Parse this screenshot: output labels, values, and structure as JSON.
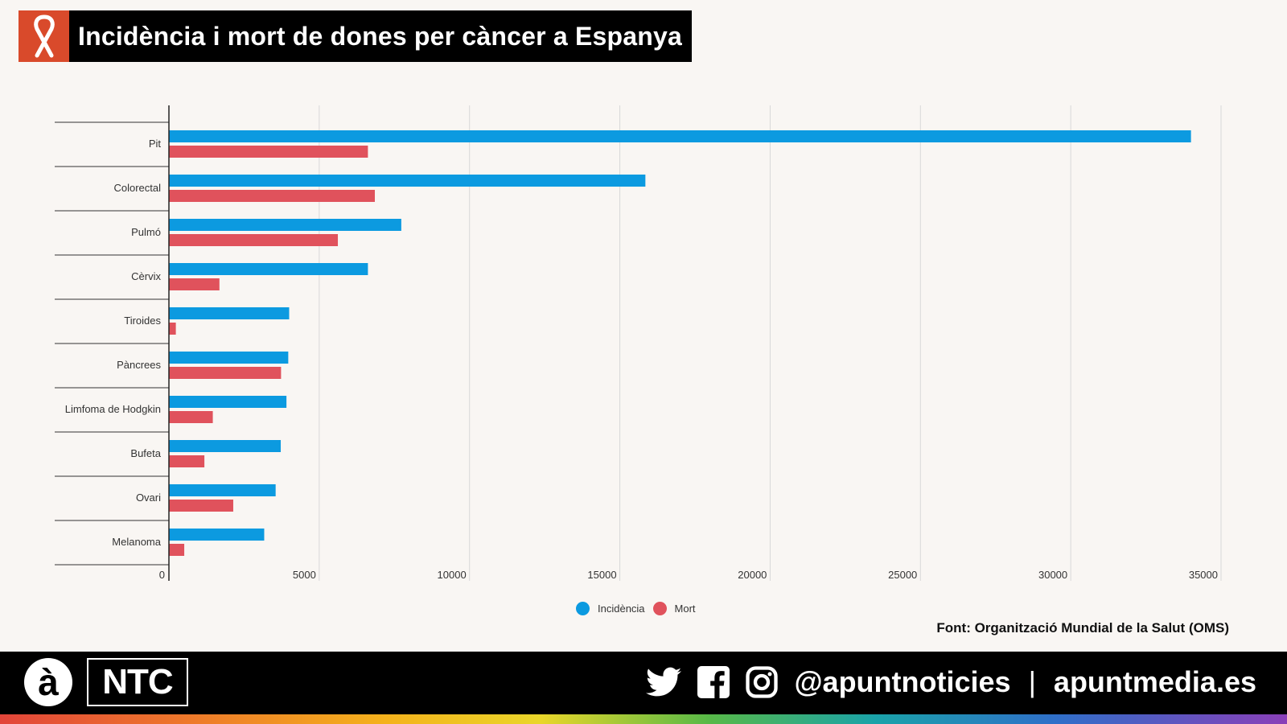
{
  "header": {
    "title": "Incidència i mort de dones per càncer a Espanya",
    "icon": "cancer-ribbon-icon"
  },
  "colors": {
    "incidence": "#0c9ae0",
    "death": "#e0525c",
    "accent": "#d94a2b"
  },
  "chart_data": {
    "type": "bar",
    "orientation": "horizontal",
    "title": "Incidència i mort de dones per càncer a Espanya",
    "categories": [
      "Pit",
      "Colorectal",
      "Pulmó",
      "Cèrvix",
      "Tiroides",
      "Pàncrees",
      "Limfoma de Hodgkin",
      "Bufeta",
      "Ovari",
      "Melanoma"
    ],
    "series": [
      {
        "name": "Incidència",
        "values": [
          34000,
          15850,
          7730,
          6620,
          4000,
          3970,
          3910,
          3720,
          3550,
          3170
        ]
      },
      {
        "name": "Mort",
        "values": [
          6620,
          6850,
          5620,
          1680,
          230,
          3730,
          1460,
          1180,
          2140,
          510
        ]
      }
    ],
    "xlim": [
      0,
      35000
    ],
    "xticks": [
      "0",
      "5000",
      "10000",
      "15000",
      "20000",
      "25000",
      "30000",
      "35000"
    ],
    "xlabel": "",
    "ylabel": "",
    "grid": true,
    "legend": "bottom-center"
  },
  "source": "Font: Organització Mundial de la Salut (OMS)",
  "footer": {
    "brand_a": "à",
    "brand_ntc": "NTC",
    "handle": "@apuntnoticies",
    "separator": "|",
    "website": "apuntmedia.es"
  }
}
